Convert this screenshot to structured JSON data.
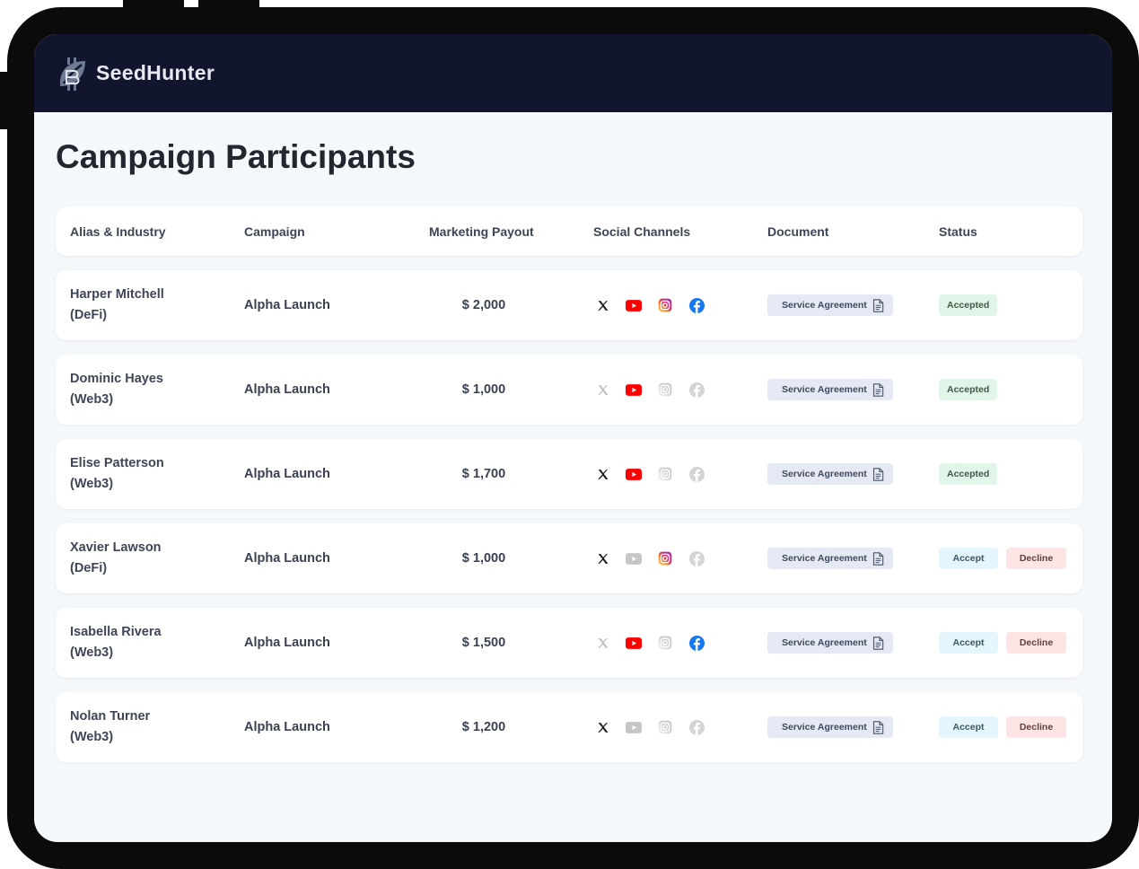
{
  "brand": {
    "name": "SeedHunter"
  },
  "page": {
    "title": "Campaign Participants"
  },
  "table": {
    "headers": {
      "alias": "Alias & Industry",
      "campaign": "Campaign",
      "payout": "Marketing Payout",
      "social": "Social Channels",
      "document": "Document",
      "status": "Status"
    },
    "rows": [
      {
        "name": "Harper Mitchell",
        "industry": "(DeFi)",
        "campaign": "Alpha Launch",
        "payout": "$ 2,000",
        "social": {
          "x": true,
          "youtube": true,
          "instagram": true,
          "facebook": true
        },
        "document": "Service Agreement",
        "status": "Accepted"
      },
      {
        "name": "Dominic Hayes",
        "industry": "(Web3)",
        "campaign": "Alpha Launch",
        "payout": "$ 1,000",
        "social": {
          "x": false,
          "youtube": true,
          "instagram": false,
          "facebook": false
        },
        "document": "Service Agreement",
        "status": "Accepted"
      },
      {
        "name": "Elise Patterson",
        "industry": "(Web3)",
        "campaign": "Alpha Launch",
        "payout": "$ 1,700",
        "social": {
          "x": true,
          "youtube": true,
          "instagram": false,
          "facebook": false
        },
        "document": "Service Agreement",
        "status": "Accepted"
      },
      {
        "name": "Xavier Lawson",
        "industry": "(DeFi)",
        "campaign": "Alpha Launch",
        "payout": "$ 1,000",
        "social": {
          "x": true,
          "youtube": false,
          "instagram": true,
          "facebook": false
        },
        "document": "Service Agreement",
        "accept_label": "Accept",
        "decline_label": "Decline"
      },
      {
        "name": "Isabella Rivera",
        "industry": "(Web3)",
        "campaign": "Alpha Launch",
        "payout": "$ 1,500",
        "social": {
          "x": false,
          "youtube": true,
          "instagram": false,
          "facebook": true
        },
        "document": "Service Agreement",
        "accept_label": "Accept",
        "decline_label": "Decline"
      },
      {
        "name": "Nolan Turner",
        "industry": "(Web3)",
        "campaign": "Alpha Launch",
        "payout": "$ 1,200",
        "social": {
          "x": true,
          "youtube": false,
          "instagram": false,
          "facebook": false
        },
        "document": "Service Agreement",
        "accept_label": "Accept",
        "decline_label": "Decline"
      }
    ]
  },
  "colors": {
    "topbar": "#12152e",
    "background": "#f5f8fb",
    "accepted": "#e1f6e8",
    "accept": "#e4f6fb",
    "decline": "#fde5e5",
    "youtube": "#ff0000",
    "facebook": "#1877f2"
  },
  "icons": {
    "brand": "seedhunter-logo-icon",
    "social": [
      "x-icon",
      "youtube-icon",
      "instagram-icon",
      "facebook-icon"
    ],
    "document": "document-icon"
  }
}
